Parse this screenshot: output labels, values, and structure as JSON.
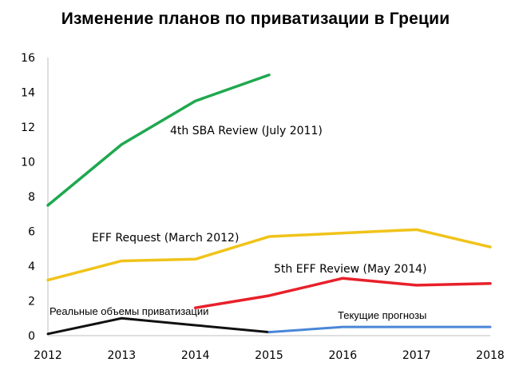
{
  "chart_data": {
    "type": "line",
    "title": "Изменение планов по приватизации в Греции",
    "xlabel": "",
    "ylabel": "",
    "x": [
      2012,
      2013,
      2014,
      2015,
      2016,
      2017,
      2018
    ],
    "x_tick_labels": [
      "2012",
      "2013",
      "2014",
      "2015",
      "2016",
      "2017",
      "2018"
    ],
    "y_tick_labels": [
      "0",
      "2",
      "4",
      "6",
      "8",
      "10",
      "12",
      "14",
      "16"
    ],
    "ylim": [
      0,
      16
    ],
    "grid": false,
    "series": [
      {
        "name": "4th SBA Review (July 2011)",
        "color": "#1fa84f",
        "points": [
          [
            2012,
            7.5
          ],
          [
            2013,
            11.0
          ],
          [
            2014,
            13.5
          ],
          [
            2015,
            15.0
          ]
        ]
      },
      {
        "name": "EFF Request (March 2012)",
        "color": "#f0c31a",
        "points": [
          [
            2012,
            3.2
          ],
          [
            2013,
            4.3
          ],
          [
            2014,
            4.4
          ],
          [
            2015,
            5.7
          ],
          [
            2016,
            5.9
          ],
          [
            2017,
            6.1
          ],
          [
            2018,
            5.1
          ]
        ]
      },
      {
        "name": "5th EFF Review (May 2014)",
        "color": "#e8202a",
        "points": [
          [
            2014,
            1.6
          ],
          [
            2015,
            2.3
          ],
          [
            2016,
            3.3
          ],
          [
            2017,
            2.9
          ],
          [
            2018,
            3.0
          ]
        ]
      },
      {
        "name": "Реальные объемы приватизации",
        "color": "#111111",
        "points": [
          [
            2012,
            0.1
          ],
          [
            2013,
            1.0
          ],
          [
            2014,
            0.6
          ],
          [
            2015,
            0.2
          ]
        ]
      },
      {
        "name": "Текущие прогнозы",
        "color": "#4a86d8",
        "points": [
          [
            2015,
            0.2
          ],
          [
            2016,
            0.5
          ],
          [
            2017,
            0.5
          ],
          [
            2018,
            0.5
          ]
        ]
      }
    ]
  }
}
